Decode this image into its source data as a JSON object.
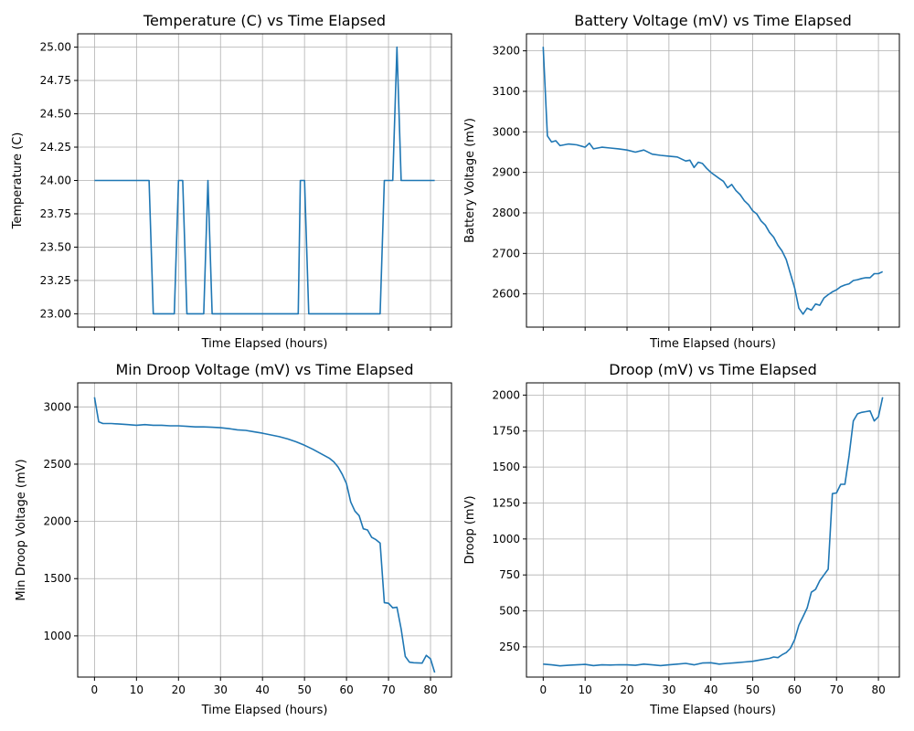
{
  "chart_data": [
    {
      "type": "line",
      "title": "Temperature (C) vs Time Elapsed",
      "xlabel": "Time Elapsed (hours)",
      "ylabel": "Temperature (C)",
      "xlim": [
        -4,
        85
      ],
      "ylim": [
        22.9,
        25.1
      ],
      "xticks": [
        0,
        10,
        20,
        30,
        40,
        50,
        60,
        70,
        80
      ],
      "yticks": [
        "23.00",
        "23.25",
        "23.50",
        "23.75",
        "24.00",
        "24.25",
        "24.50",
        "24.75",
        "25.00"
      ],
      "show_xtick_labels": false,
      "grid": true,
      "color": "#1f77b4",
      "series": [
        {
          "x": [
            0,
            13,
            14,
            19,
            20,
            21,
            22,
            26,
            27,
            28,
            48.5,
            49,
            50,
            51,
            68,
            69,
            71,
            72,
            73,
            81
          ],
          "values": [
            24,
            24,
            23,
            23,
            24,
            24,
            23,
            23,
            24,
            23,
            23,
            24,
            24,
            23,
            23,
            24,
            24,
            25,
            24,
            24
          ]
        }
      ]
    },
    {
      "type": "line",
      "title": "Battery Voltage (mV) vs Time Elapsed",
      "xlabel": "Time Elapsed (hours)",
      "ylabel": "Battery Voltage (mV)",
      "xlim": [
        -4,
        85
      ],
      "ylim": [
        2518,
        3242
      ],
      "xticks": [
        0,
        10,
        20,
        30,
        40,
        50,
        60,
        70,
        80
      ],
      "yticks": [
        "2600",
        "2700",
        "2800",
        "2900",
        "3000",
        "3100",
        "3200"
      ],
      "show_xtick_labels": false,
      "grid": true,
      "color": "#1f77b4",
      "series": [
        {
          "x": [
            0,
            1,
            2,
            3,
            4,
            6,
            8,
            10,
            11,
            12,
            14,
            16,
            18,
            20,
            22,
            24,
            26,
            28,
            30,
            32,
            34,
            35,
            36,
            37,
            38,
            39,
            40,
            42,
            43,
            44,
            45,
            46,
            47,
            48,
            49,
            50,
            51,
            52,
            53,
            54,
            55,
            56,
            57,
            58,
            59,
            60,
            61,
            62,
            63,
            64,
            65,
            66,
            67,
            68,
            69,
            70,
            71,
            72,
            73,
            74,
            75,
            76,
            77,
            78,
            79,
            80,
            81
          ],
          "values": [
            3210,
            2990,
            2975,
            2978,
            2966,
            2970,
            2968,
            2962,
            2972,
            2958,
            2962,
            2960,
            2958,
            2955,
            2950,
            2955,
            2945,
            2942,
            2940,
            2938,
            2928,
            2930,
            2912,
            2925,
            2922,
            2910,
            2900,
            2885,
            2878,
            2862,
            2870,
            2855,
            2845,
            2830,
            2820,
            2805,
            2797,
            2780,
            2770,
            2752,
            2740,
            2720,
            2706,
            2685,
            2650,
            2615,
            2565,
            2550,
            2565,
            2560,
            2575,
            2572,
            2590,
            2598,
            2605,
            2610,
            2618,
            2622,
            2625,
            2633,
            2635,
            2638,
            2640,
            2640,
            2650,
            2650,
            2655
          ]
        }
      ]
    },
    {
      "type": "line",
      "title": "Min Droop Voltage (mV) vs Time Elapsed",
      "xlabel": "Time Elapsed (hours)",
      "ylabel": "Min Droop Voltage (mV)",
      "xlim": [
        -4,
        85
      ],
      "ylim": [
        640,
        3210
      ],
      "xticks": [
        0,
        10,
        20,
        30,
        40,
        50,
        60,
        70,
        80
      ],
      "yticks": [
        "1000",
        "1500",
        "2000",
        "2500",
        "3000"
      ],
      "show_xtick_labels": true,
      "grid": true,
      "color": "#1f77b4",
      "series": [
        {
          "x": [
            0,
            1,
            2,
            4,
            6,
            8,
            10,
            12,
            14,
            16,
            18,
            20,
            22,
            24,
            26,
            28,
            30,
            32,
            34,
            36,
            38,
            40,
            42,
            44,
            46,
            48,
            50,
            52,
            54,
            56,
            57,
            58,
            59,
            60,
            61,
            62,
            63,
            64,
            65,
            66,
            67,
            68,
            69,
            70,
            71,
            72,
            73,
            74,
            75,
            76,
            78,
            79,
            80,
            81
          ],
          "values": [
            3085,
            2870,
            2855,
            2855,
            2850,
            2845,
            2840,
            2845,
            2840,
            2840,
            2835,
            2835,
            2830,
            2825,
            2825,
            2822,
            2818,
            2810,
            2800,
            2795,
            2782,
            2770,
            2755,
            2740,
            2720,
            2695,
            2665,
            2630,
            2590,
            2550,
            2520,
            2475,
            2410,
            2330,
            2170,
            2090,
            2050,
            1935,
            1925,
            1860,
            1840,
            1810,
            1290,
            1285,
            1245,
            1250,
            1060,
            820,
            770,
            765,
            762,
            830,
            800,
            680
          ]
        }
      ]
    },
    {
      "type": "line",
      "title": "Droop (mV) vs Time Elapsed",
      "xlabel": "Time Elapsed (hours)",
      "ylabel": "Droop (mV)",
      "xlim": [
        -4,
        85
      ],
      "ylim": [
        40,
        2085
      ],
      "xticks": [
        0,
        10,
        20,
        30,
        40,
        50,
        60,
        70,
        80
      ],
      "yticks": [
        "250",
        "500",
        "750",
        "1000",
        "1250",
        "1500",
        "1750",
        "2000"
      ],
      "show_xtick_labels": true,
      "grid": true,
      "color": "#1f77b4",
      "series": [
        {
          "x": [
            0,
            2,
            4,
            6,
            8,
            10,
            12,
            14,
            16,
            18,
            20,
            22,
            24,
            26,
            28,
            30,
            32,
            34,
            36,
            38,
            40,
            42,
            44,
            46,
            48,
            50,
            52,
            54,
            55,
            56,
            57,
            58,
            59,
            60,
            61,
            62,
            63,
            64,
            65,
            66,
            67,
            68,
            69,
            70,
            71,
            72,
            73,
            74,
            75,
            76,
            77,
            78,
            79,
            80,
            81
          ],
          "values": [
            130,
            125,
            118,
            122,
            125,
            128,
            120,
            125,
            124,
            126,
            125,
            122,
            130,
            125,
            120,
            125,
            130,
            135,
            125,
            138,
            140,
            130,
            135,
            140,
            145,
            150,
            160,
            170,
            180,
            175,
            195,
            210,
            240,
            300,
            400,
            460,
            520,
            630,
            650,
            710,
            750,
            790,
            1315,
            1320,
            1380,
            1380,
            1580,
            1820,
            1870,
            1880,
            1885,
            1890,
            1820,
            1850,
            1985
          ]
        }
      ]
    }
  ]
}
